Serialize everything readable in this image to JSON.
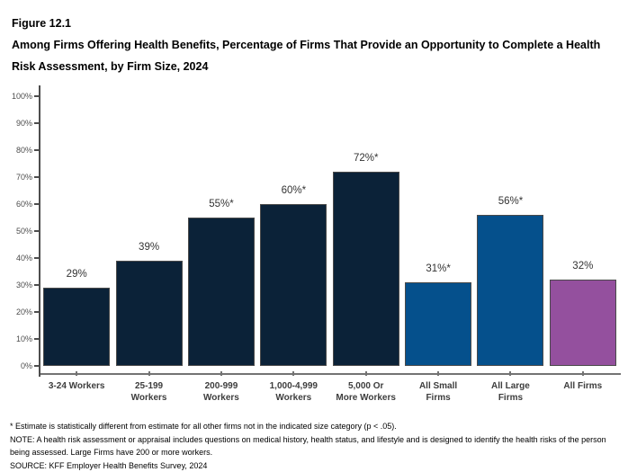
{
  "header": {
    "figure_label": "Figure 12.1",
    "title": "Among Firms Offering Health Benefits, Percentage of Firms That Provide an Opportunity to Complete a Health Risk Assessment, by Firm Size, 2024"
  },
  "chart_data": {
    "type": "bar",
    "title": "Among Firms Offering Health Benefits, Percentage of Firms That Provide an Opportunity to Complete a Health Risk Assessment, by Firm Size, 2024",
    "categories": [
      "3-24 Workers",
      "25-199\nWorkers",
      "200-999\nWorkers",
      "1,000-4,999\nWorkers",
      "5,000 Or\nMore Workers",
      "All Small\nFirms",
      "All Large\nFirms",
      "All Firms"
    ],
    "values": [
      29,
      39,
      55,
      60,
      72,
      31,
      56,
      32
    ],
    "bar_labels": [
      "29%",
      "39%",
      "55%*",
      "60%*",
      "72%*",
      "31%*",
      "56%*",
      "32%"
    ],
    "bar_colors": [
      "#0b2238",
      "#0b2238",
      "#0b2238",
      "#0b2238",
      "#0b2238",
      "#05508c",
      "#05508c",
      "#94509e"
    ],
    "xlabel": "",
    "ylabel": "",
    "ylim": [
      0,
      100
    ],
    "yticks": [
      0,
      10,
      20,
      30,
      40,
      50,
      60,
      70,
      80,
      90,
      100
    ],
    "ytick_labels": [
      "0%",
      "10%",
      "20%",
      "30%",
      "40%",
      "50%",
      "60%",
      "70%",
      "80%",
      "90%",
      "100%"
    ],
    "grid": false,
    "legend": false,
    "palette": {
      "dark_navy": "#0b2238",
      "medium_blue": "#05508c",
      "purple": "#94509e",
      "axis_line": "#737373",
      "y_axis_line": "#4d4d4d",
      "label_text": "#333333"
    }
  },
  "footnotes": [
    "* Estimate is statistically different from estimate for all other firms not in the indicated size category (p < .05).",
    "NOTE: A health risk assessment or appraisal includes questions on medical history, health status, and lifestyle and is designed to identify the health risks of the person being assessed.  Large Firms have 200 or more workers.",
    "SOURCE: KFF Employer Health Benefits Survey, 2024"
  ]
}
